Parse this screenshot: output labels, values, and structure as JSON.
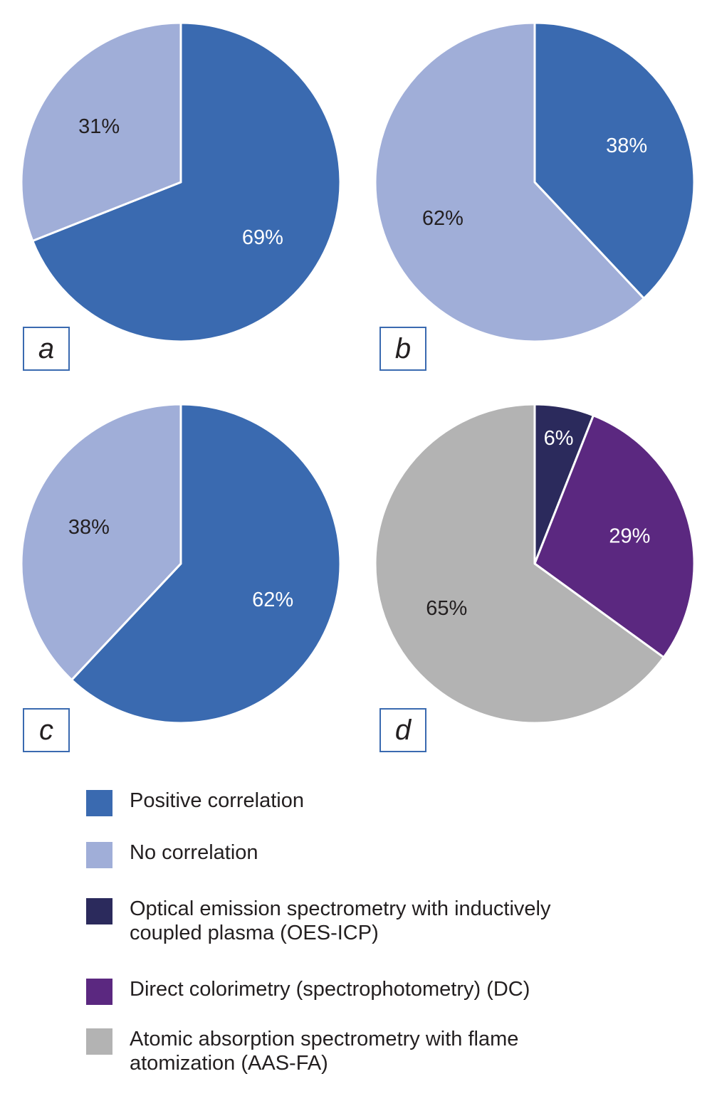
{
  "chart_data": [
    {
      "type": "pie",
      "panel": "a",
      "start": "12 o'clock",
      "direction": "clockwise",
      "slices": [
        {
          "label": "Positive correlation",
          "value": 69,
          "text": "69%",
          "color": "#3a6ab0",
          "text_color": "#ffffff"
        },
        {
          "label": "No correlation",
          "value": 31,
          "text": "31%",
          "color": "#a0aed8",
          "text_color": "#231f20"
        }
      ]
    },
    {
      "type": "pie",
      "panel": "b",
      "start": "12 o'clock",
      "direction": "clockwise",
      "slices": [
        {
          "label": "Positive correlation",
          "value": 38,
          "text": "38%",
          "color": "#3a6ab0",
          "text_color": "#ffffff"
        },
        {
          "label": "No correlation",
          "value": 62,
          "text": "62%",
          "color": "#a0aed8",
          "text_color": "#231f20"
        }
      ]
    },
    {
      "type": "pie",
      "panel": "c",
      "start": "12 o'clock",
      "direction": "clockwise",
      "slices": [
        {
          "label": "Positive correlation",
          "value": 62,
          "text": "62%",
          "color": "#3a6ab0",
          "text_color": "#ffffff"
        },
        {
          "label": "No correlation",
          "value": 38,
          "text": "38%",
          "color": "#a0aed8",
          "text_color": "#231f20"
        }
      ]
    },
    {
      "type": "pie",
      "panel": "d",
      "start": "12 o'clock",
      "direction": "clockwise",
      "slices": [
        {
          "label": "Optical emission spectrometry with inductively coupled plasma (OES-ICP)",
          "value": 6,
          "text": "6%",
          "color": "#2b2a5c",
          "text_color": "#ffffff"
        },
        {
          "label": "Direct colorimetry (spectrophotometry) (DC)",
          "value": 29,
          "text": "29%",
          "color": "#5b2880",
          "text_color": "#ffffff"
        },
        {
          "label": "Atomic absorption spectrometry with flame atomization (AAS-FA)",
          "value": 65,
          "text": "65%",
          "color": "#b3b3b3",
          "text_color": "#231f20"
        }
      ]
    }
  ],
  "legend": [
    {
      "text": "Positive correlation",
      "color": "#3a6ab0"
    },
    {
      "text": "No correlation",
      "color": "#a0aed8"
    },
    {
      "text": "Optical emission spectrometry with inductively coupled plasma (OES-ICP)",
      "color": "#2b2a5c"
    },
    {
      "text": "Direct colorimetry (spectrophotometry) (DC)",
      "color": "#5b2880"
    },
    {
      "text": "Atomic absorption spectrometry with flame atomization (AAS-FA)",
      "color": "#b3b3b3"
    }
  ]
}
